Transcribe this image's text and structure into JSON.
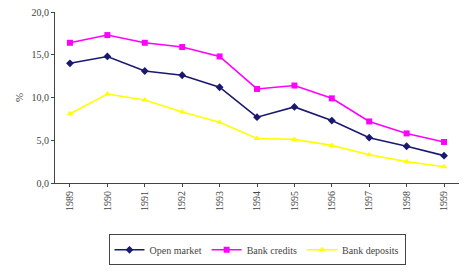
{
  "chart_data": {
    "type": "line",
    "ylabel": "%",
    "x": [
      1989,
      1990,
      1991,
      1992,
      1993,
      1994,
      1995,
      1996,
      1997,
      1998,
      1999
    ],
    "series": [
      {
        "name": "Open market",
        "color": "#191970",
        "marker": "diamond",
        "values": [
          14.0,
          14.8,
          13.1,
          12.6,
          11.2,
          7.7,
          8.9,
          7.3,
          5.3,
          4.3,
          3.2
        ]
      },
      {
        "name": "Bank credits",
        "color": "#FF00FF",
        "marker": "square",
        "values": [
          16.4,
          17.3,
          16.4,
          15.9,
          14.8,
          11.0,
          11.4,
          9.9,
          7.2,
          5.8,
          4.8
        ]
      },
      {
        "name": "Bank deposits",
        "color": "#FFFF00",
        "marker": "triangle-up",
        "values": [
          8.1,
          10.4,
          9.7,
          8.3,
          7.1,
          5.2,
          5.1,
          4.4,
          3.3,
          2.5,
          1.9
        ]
      }
    ],
    "xlim": [
      1988.6,
      1999.4
    ],
    "xticks": [
      1989,
      1990,
      1991,
      1992,
      1993,
      1994,
      1995,
      1996,
      1997,
      1998,
      1999
    ],
    "ylim": [
      0.0,
      20.0
    ],
    "yticks": [
      {
        "value": 0.0,
        "label": "0,0"
      },
      {
        "value": 5.0,
        "label": "5,0"
      },
      {
        "value": 10.0,
        "label": "10,0"
      },
      {
        "value": 15.0,
        "label": "15,0"
      },
      {
        "value": 20.0,
        "label": "20,0"
      }
    ],
    "grid": false,
    "legend": "bottom"
  }
}
